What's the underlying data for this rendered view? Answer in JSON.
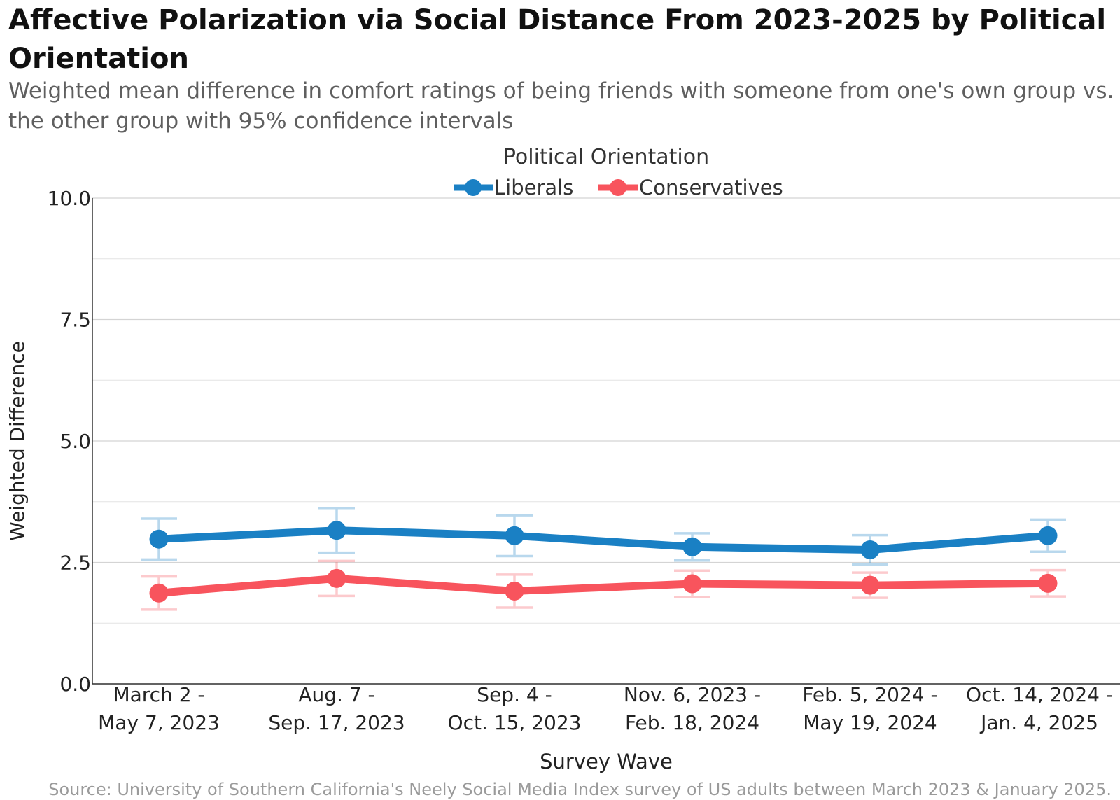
{
  "title": "Affective Polarization via Social Distance From 2023-2025 by Political Orientation",
  "subtitle": "Weighted mean difference in comfort ratings of being friends with someone from one's own group vs. the other group with 95% confidence intervals",
  "source": "Source: University of Southern California's Neely Social Media Index survey of US adults between March 2023 & January 2025.",
  "chart_data": {
    "type": "line",
    "title": "Affective Polarization via Social Distance From 2023-2025 by Political Orientation",
    "subtitle": "Weighted mean difference in comfort ratings of being friends with someone from one's own group vs. the other group with 95% confidence intervals",
    "xlabel": "Survey Wave",
    "ylabel": "Weighted Difference",
    "legend_title": "Political Orientation",
    "legend_position": "top-center",
    "grid": true,
    "ylim": [
      0,
      10
    ],
    "yticks": [
      "0.0",
      "2.5",
      "5.0",
      "7.5",
      "10.0"
    ],
    "categories": [
      [
        "March 2 -",
        "May 7, 2023"
      ],
      [
        "Aug. 7 -",
        "Sep. 17, 2023"
      ],
      [
        "Sep. 4 -",
        "Oct. 15, 2023"
      ],
      [
        "Nov. 6, 2023 -",
        "Feb. 18, 2024"
      ],
      [
        "Feb. 5, 2024 -",
        "May 19, 2024"
      ],
      [
        "Oct. 14, 2024 -",
        "Jan. 4, 2025"
      ]
    ],
    "series": [
      {
        "name": "Liberals",
        "color": "#1a80c4",
        "values": [
          2.98,
          3.16,
          3.05,
          2.82,
          2.76,
          3.05
        ],
        "ci_low": [
          2.56,
          2.7,
          2.63,
          2.54,
          2.46,
          2.72
        ],
        "ci_high": [
          3.4,
          3.62,
          3.47,
          3.1,
          3.06,
          3.38
        ]
      },
      {
        "name": "Conservatives",
        "color": "#f8545d",
        "values": [
          1.87,
          2.17,
          1.91,
          2.06,
          2.03,
          2.07
        ],
        "ci_low": [
          1.53,
          1.81,
          1.57,
          1.79,
          1.77,
          1.8
        ],
        "ci_high": [
          2.21,
          2.53,
          2.25,
          2.33,
          2.29,
          2.34
        ]
      }
    ]
  }
}
